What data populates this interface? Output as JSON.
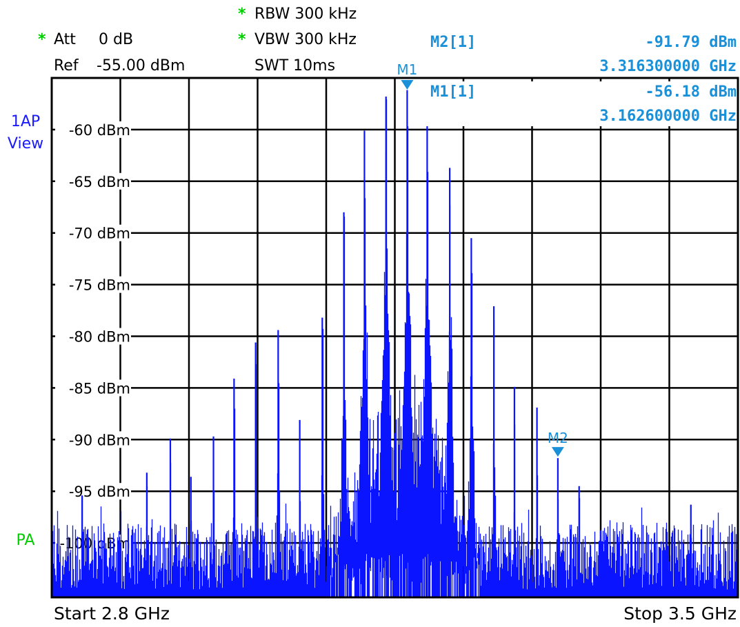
{
  "header": {
    "att_label": "Att",
    "att_value": "0 dB",
    "ref_label": "Ref",
    "ref_value": "-55.00 dBm",
    "rbw": "RBW 300 kHz",
    "vbw": "VBW 300 kHz",
    "swt": "SWT 10ms",
    "asterisk": "*"
  },
  "side": {
    "trace_mode": "1AP",
    "view": "View",
    "pa": "PA"
  },
  "markers": [
    {
      "label": "M1",
      "readout_name": "M1[1]",
      "level": "-56.18 dBm",
      "freq": "3.162600000 GHz",
      "freq_ghz": 3.1626,
      "level_dbm": -56.18
    },
    {
      "label": "M2",
      "readout_name": "M2[1]",
      "level": "-91.79 dBm",
      "freq": "3.316300000 GHz",
      "freq_ghz": 3.3163,
      "level_dbm": -91.79
    }
  ],
  "footer": {
    "start": "Start 2.8 GHz",
    "stop": "Stop 3.5 GHz"
  },
  "colors": {
    "trace": "#0a14ff",
    "marker": "#1a90d8",
    "asterisk": "#00cc00",
    "side_blue": "#1a1aff",
    "pa_green": "#00cc00"
  },
  "chart_data": {
    "type": "line",
    "xlabel": "",
    "ylabel": "",
    "xlim": [
      2.8,
      3.5
    ],
    "x_unit": "GHz",
    "ylim": [
      -105,
      -55
    ],
    "y_unit": "dBm",
    "grid": true,
    "x_divisions": 10,
    "y_ticks": [
      -60,
      -65,
      -70,
      -75,
      -80,
      -85,
      -90,
      -95,
      -100
    ],
    "y_tick_labels": [
      "-60 dBm",
      "-65 dBm",
      "-70 dBm",
      "-75 dBm",
      "-80 dBm",
      "-85 dBm",
      "-90 dBm",
      "-95 dBm",
      "-100 dBm"
    ],
    "noise_floor_dbm": [
      -105,
      -97
    ],
    "peaks": [
      {
        "freq_ghz": 2.831,
        "level_dbm": -95.4
      },
      {
        "freq_ghz": 2.897,
        "level_dbm": -93.2
      },
      {
        "freq_ghz": 2.921,
        "level_dbm": -89.9
      },
      {
        "freq_ghz": 2.942,
        "level_dbm": -93.6
      },
      {
        "freq_ghz": 2.965,
        "level_dbm": -89.7
      },
      {
        "freq_ghz": 2.986,
        "level_dbm": -84.1
      },
      {
        "freq_ghz": 3.008,
        "level_dbm": -80.6
      },
      {
        "freq_ghz": 3.031,
        "level_dbm": -79.4
      },
      {
        "freq_ghz": 3.053,
        "level_dbm": -88.1
      },
      {
        "freq_ghz": 3.076,
        "level_dbm": -78.2
      },
      {
        "freq_ghz": 3.098,
        "level_dbm": -68.0
      },
      {
        "freq_ghz": 3.119,
        "level_dbm": -60.1
      },
      {
        "freq_ghz": 3.141,
        "level_dbm": -56.8
      },
      {
        "freq_ghz": 3.1626,
        "level_dbm": -56.18
      },
      {
        "freq_ghz": 3.183,
        "level_dbm": -58.7
      },
      {
        "freq_ghz": 3.206,
        "level_dbm": -63.7
      },
      {
        "freq_ghz": 3.228,
        "level_dbm": -70.5
      },
      {
        "freq_ghz": 3.251,
        "level_dbm": -77.1
      },
      {
        "freq_ghz": 3.272,
        "level_dbm": -84.9
      },
      {
        "freq_ghz": 3.295,
        "level_dbm": -86.9
      },
      {
        "freq_ghz": 3.3163,
        "level_dbm": -91.79
      },
      {
        "freq_ghz": 3.338,
        "level_dbm": -94.5
      },
      {
        "freq_ghz": 3.452,
        "level_dbm": -96.3
      }
    ]
  }
}
